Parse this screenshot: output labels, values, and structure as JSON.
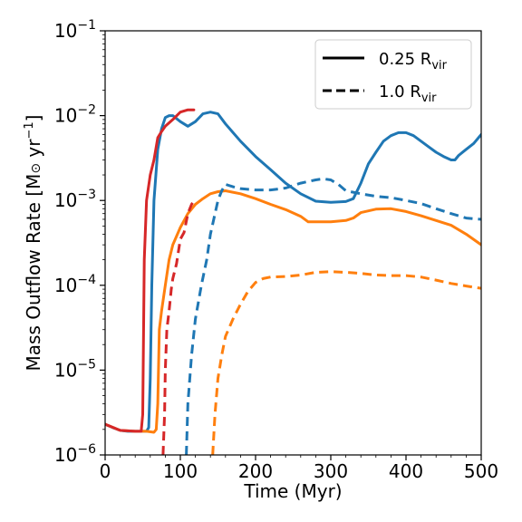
{
  "chart_data": {
    "type": "line",
    "xlabel": "Time (Myr)",
    "ylabel": "Mass Outflow Rate [M⊙ yr⁻¹]",
    "xlim": [
      0,
      500
    ],
    "ylim": [
      1e-06,
      0.1
    ],
    "yscale": "log",
    "grid": false,
    "legend_position": "top-right",
    "x_ticks": [
      "0",
      "100",
      "200",
      "300",
      "400",
      "500"
    ],
    "y_ticks": [
      {
        "base": "10",
        "exp": "−1",
        "value": 0.1
      },
      {
        "base": "10",
        "exp": "−2",
        "value": 0.01
      },
      {
        "base": "10",
        "exp": "−3",
        "value": 0.001
      },
      {
        "base": "10",
        "exp": "−4",
        "value": 0.0001
      },
      {
        "base": "10",
        "exp": "−5",
        "value": 1e-05
      },
      {
        "base": "10",
        "exp": "−6",
        "value": 1e-06
      }
    ],
    "legend": [
      {
        "text": "0.25 R",
        "sub": "vir",
        "style": "solid"
      },
      {
        "text": "1.0 R",
        "sub": "vir",
        "style": "dashed"
      }
    ],
    "series": [
      {
        "color": "#1f77b4",
        "style": "solid",
        "points": [
          [
            0,
            2.3e-06
          ],
          [
            10,
            2.1e-06
          ],
          [
            20,
            1.95e-06
          ],
          [
            30,
            1.9e-06
          ],
          [
            40,
            1.9e-06
          ],
          [
            50,
            1.9e-06
          ],
          [
            55,
            1.9e-06
          ],
          [
            58,
            2.1e-06
          ],
          [
            60,
            8e-06
          ],
          [
            62,
            0.0001
          ],
          [
            65,
            0.001
          ],
          [
            70,
            0.004
          ],
          [
            75,
            0.007
          ],
          [
            80,
            0.0095
          ],
          [
            85,
            0.01
          ],
          [
            90,
            0.01
          ],
          [
            100,
            0.0085
          ],
          [
            110,
            0.0075
          ],
          [
            120,
            0.0085
          ],
          [
            130,
            0.0105
          ],
          [
            140,
            0.011
          ],
          [
            150,
            0.0105
          ],
          [
            160,
            0.008
          ],
          [
            180,
            0.005
          ],
          [
            200,
            0.0033
          ],
          [
            220,
            0.0023
          ],
          [
            240,
            0.0016
          ],
          [
            260,
            0.0012
          ],
          [
            280,
            0.00098
          ],
          [
            300,
            0.00095
          ],
          [
            320,
            0.00097
          ],
          [
            330,
            0.00105
          ],
          [
            340,
            0.0016
          ],
          [
            350,
            0.0027
          ],
          [
            360,
            0.0037
          ],
          [
            370,
            0.005
          ],
          [
            380,
            0.0058
          ],
          [
            390,
            0.0063
          ],
          [
            400,
            0.0063
          ],
          [
            410,
            0.0058
          ],
          [
            420,
            0.005
          ],
          [
            430,
            0.0043
          ],
          [
            440,
            0.0037
          ],
          [
            450,
            0.0033
          ],
          [
            460,
            0.003
          ],
          [
            465,
            0.003
          ],
          [
            470,
            0.0034
          ],
          [
            480,
            0.004
          ],
          [
            490,
            0.0047
          ],
          [
            500,
            0.006
          ]
        ]
      },
      {
        "color": "#ff7f0e",
        "style": "solid",
        "points": [
          [
            0,
            2.3e-06
          ],
          [
            20,
            1.95e-06
          ],
          [
            40,
            1.9e-06
          ],
          [
            55,
            1.9e-06
          ],
          [
            65,
            1.85e-06
          ],
          [
            68,
            2e-06
          ],
          [
            70,
            4e-06
          ],
          [
            72,
            3e-05
          ],
          [
            75,
            5e-05
          ],
          [
            80,
            0.0001
          ],
          [
            85,
            0.0002
          ],
          [
            90,
            0.0003
          ],
          [
            100,
            0.00048
          ],
          [
            110,
            0.0007
          ],
          [
            120,
            0.0009
          ],
          [
            130,
            0.00105
          ],
          [
            140,
            0.0012
          ],
          [
            150,
            0.00127
          ],
          [
            160,
            0.0013
          ],
          [
            180,
            0.0012
          ],
          [
            200,
            0.00105
          ],
          [
            220,
            0.0009
          ],
          [
            240,
            0.00078
          ],
          [
            260,
            0.00065
          ],
          [
            270,
            0.00056
          ],
          [
            280,
            0.00056
          ],
          [
            300,
            0.00056
          ],
          [
            320,
            0.00058
          ],
          [
            330,
            0.00062
          ],
          [
            340,
            0.00072
          ],
          [
            360,
            0.00079
          ],
          [
            380,
            0.0008
          ],
          [
            400,
            0.00074
          ],
          [
            420,
            0.00066
          ],
          [
            440,
            0.00058
          ],
          [
            460,
            0.00051
          ],
          [
            480,
            0.0004
          ],
          [
            500,
            0.0003
          ]
        ]
      },
      {
        "color": "#d62728",
        "style": "solid",
        "points": [
          [
            0,
            2.3e-06
          ],
          [
            20,
            1.95e-06
          ],
          [
            40,
            1.9e-06
          ],
          [
            48,
            1.9e-06
          ],
          [
            50,
            3e-06
          ],
          [
            52,
            0.0002
          ],
          [
            55,
            0.001
          ],
          [
            58,
            0.0015
          ],
          [
            60,
            0.002
          ],
          [
            65,
            0.003
          ],
          [
            70,
            0.0055
          ],
          [
            75,
            0.0065
          ],
          [
            80,
            0.0075
          ],
          [
            90,
            0.009
          ],
          [
            100,
            0.011
          ],
          [
            110,
            0.0117
          ],
          [
            118,
            0.0117
          ]
        ]
      },
      {
        "color": "#1f77b4",
        "style": "dashed",
        "points": [
          [
            108,
            1e-06
          ],
          [
            110,
            4e-06
          ],
          [
            115,
            1.5e-05
          ],
          [
            120,
            4e-05
          ],
          [
            128,
            0.0001
          ],
          [
            135,
            0.0002
          ],
          [
            140,
            0.0004
          ],
          [
            150,
            0.001
          ],
          [
            155,
            0.0013
          ],
          [
            160,
            0.00155
          ],
          [
            170,
            0.00145
          ],
          [
            180,
            0.00138
          ],
          [
            200,
            0.00133
          ],
          [
            220,
            0.00133
          ],
          [
            240,
            0.0014
          ],
          [
            260,
            0.0016
          ],
          [
            280,
            0.00175
          ],
          [
            290,
            0.0018
          ],
          [
            300,
            0.00175
          ],
          [
            310,
            0.00155
          ],
          [
            320,
            0.0013
          ],
          [
            340,
            0.0012
          ],
          [
            360,
            0.00112
          ],
          [
            380,
            0.00108
          ],
          [
            400,
            0.001
          ],
          [
            420,
            0.00092
          ],
          [
            440,
            0.0008
          ],
          [
            460,
            0.0007
          ],
          [
            480,
            0.00062
          ],
          [
            500,
            0.0006
          ]
        ]
      },
      {
        "color": "#ff7f0e",
        "style": "dashed",
        "points": [
          [
            143,
            1e-06
          ],
          [
            146,
            3e-06
          ],
          [
            150,
            8e-06
          ],
          [
            155,
            1.5e-05
          ],
          [
            160,
            2.5e-05
          ],
          [
            170,
            4e-05
          ],
          [
            180,
            6e-05
          ],
          [
            190,
            8.5e-05
          ],
          [
            200,
            0.000108
          ],
          [
            210,
            0.00012
          ],
          [
            220,
            0.000125
          ],
          [
            240,
            0.000127
          ],
          [
            260,
            0.000132
          ],
          [
            280,
            0.000142
          ],
          [
            300,
            0.000145
          ],
          [
            320,
            0.000142
          ],
          [
            340,
            0.000138
          ],
          [
            360,
            0.000132
          ],
          [
            380,
            0.00013
          ],
          [
            400,
            0.00013
          ],
          [
            420,
            0.000125
          ],
          [
            440,
            0.000115
          ],
          [
            460,
            0.000105
          ],
          [
            480,
            9.8e-05
          ],
          [
            500,
            9.2e-05
          ]
        ]
      },
      {
        "color": "#d62728",
        "style": "dashed",
        "points": [
          [
            77,
            1e-06
          ],
          [
            79,
            3e-06
          ],
          [
            80,
            1e-05
          ],
          [
            82,
            3e-05
          ],
          [
            85,
            5e-05
          ],
          [
            88,
            9e-05
          ],
          [
            90,
            0.00012
          ],
          [
            95,
            0.00018
          ],
          [
            100,
            0.00035
          ],
          [
            105,
            0.00042
          ],
          [
            110,
            0.0007
          ],
          [
            115,
            0.0009
          ],
          [
            118,
            0.00098
          ]
        ]
      }
    ]
  }
}
